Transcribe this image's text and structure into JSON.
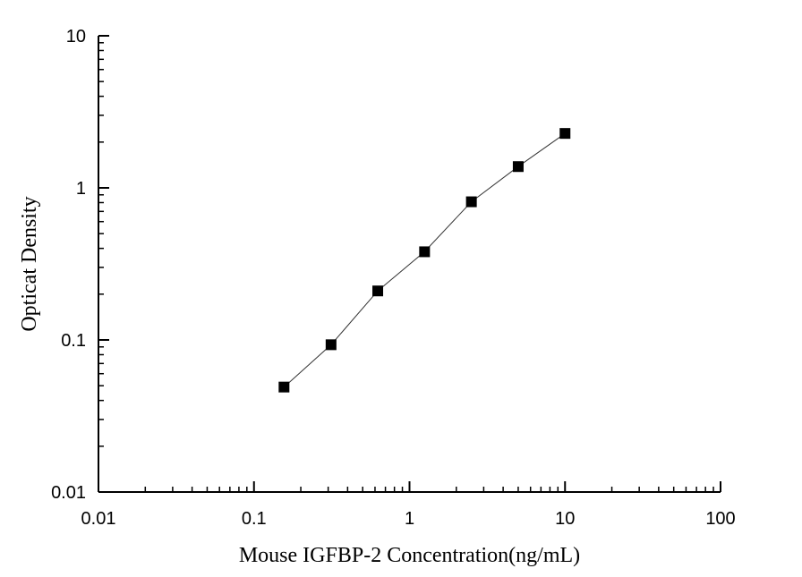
{
  "chart_data": {
    "type": "scatter",
    "xlabel": "Mouse IGFBP-2  Concentration(ng/mL)",
    "ylabel": "Opticat Density",
    "x_scale": "log",
    "y_scale": "log",
    "xlim": [
      0.01,
      100
    ],
    "ylim": [
      0.01,
      10
    ],
    "x_ticks": [
      "0.01",
      "0.1",
      "1",
      "10",
      "100"
    ],
    "y_ticks": [
      "0.01",
      "0.1",
      "1",
      "10"
    ],
    "grid": false,
    "series": [
      {
        "x": [
          0.156,
          0.313,
          0.625,
          1.25,
          2.5,
          5,
          10
        ],
        "y": [
          0.049,
          0.093,
          0.21,
          0.38,
          0.81,
          1.38,
          2.28
        ]
      }
    ],
    "fit_line": true
  }
}
